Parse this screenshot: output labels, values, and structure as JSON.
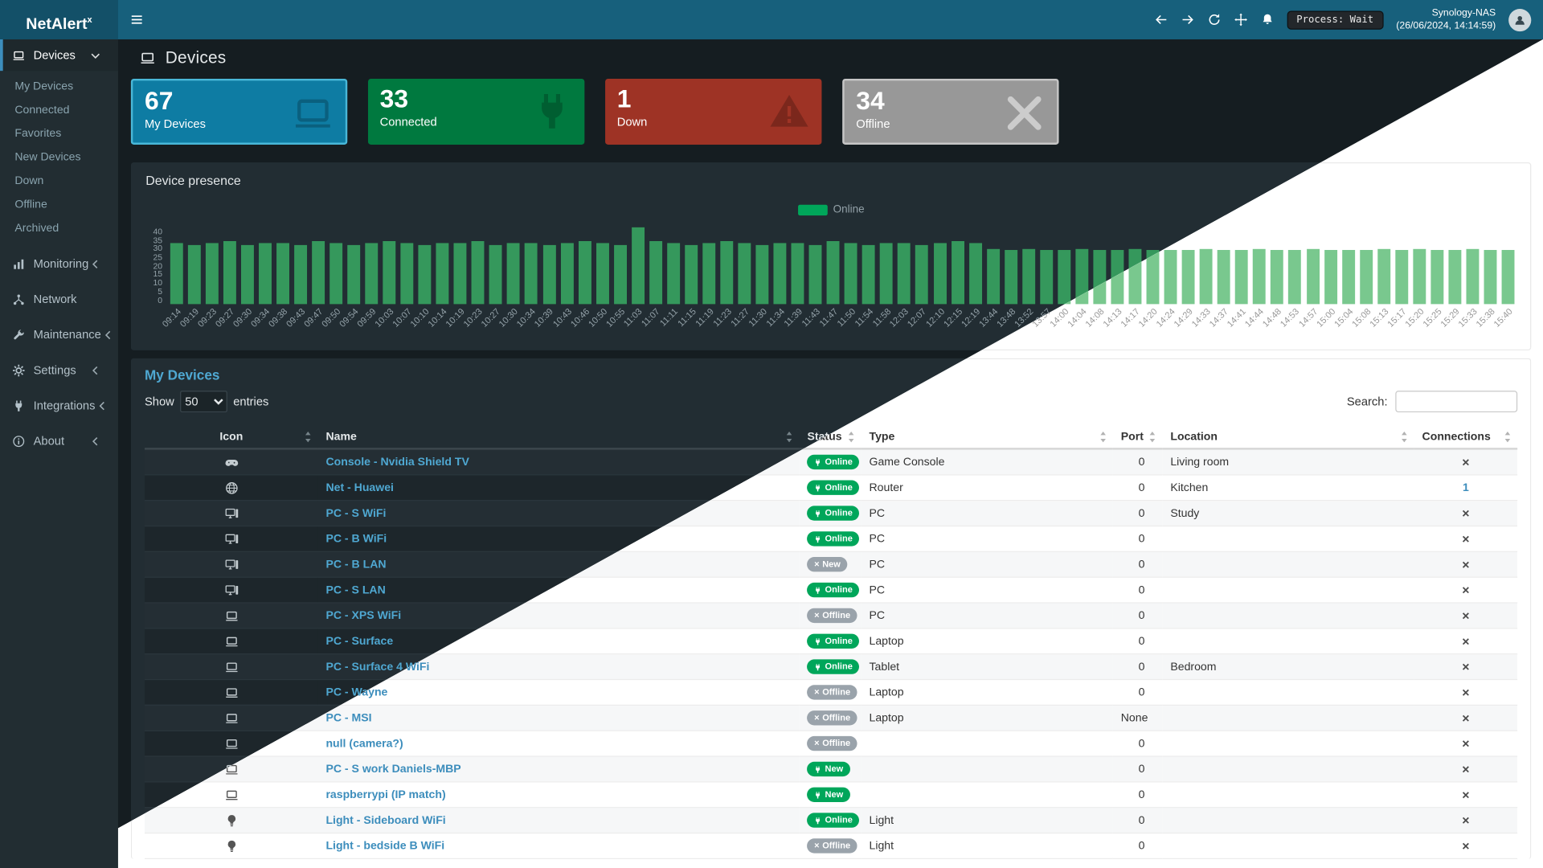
{
  "navbar": {
    "brand": "NetAlert",
    "brand_sup": "x",
    "process_label": "Process: Wait",
    "host": "Synology-NAS",
    "timestamp": "(26/06/2024, 14:14:59)"
  },
  "sidebar": {
    "items": [
      {
        "label": "Devices",
        "icon": "laptop",
        "chevron": "down",
        "active": true,
        "children": [
          "My Devices",
          "Connected",
          "Favorites",
          "New Devices",
          "Down",
          "Offline",
          "Archived"
        ]
      },
      {
        "label": "Monitoring",
        "icon": "chart",
        "chevron": "left"
      },
      {
        "label": "Network",
        "icon": "network",
        "chevron": ""
      },
      {
        "label": "Maintenance",
        "icon": "wrench",
        "chevron": "left"
      },
      {
        "label": "Settings",
        "icon": "gear",
        "chevron": "left"
      },
      {
        "label": "Integrations",
        "icon": "plug",
        "chevron": "left"
      },
      {
        "label": "About",
        "icon": "info",
        "chevron": "left"
      }
    ]
  },
  "page": {
    "title": "Devices"
  },
  "stats": [
    {
      "value": "67",
      "label": "My Devices",
      "color": "#0e7ca3",
      "border": "#49b7d8",
      "icon": "laptop"
    },
    {
      "value": "33",
      "label": "Connected",
      "color": "#00793f",
      "icon": "plug"
    },
    {
      "value": "1",
      "label": "Down",
      "color": "#9e3325",
      "icon": "warning"
    },
    {
      "value": "34",
      "label": "Offline",
      "color": "#989898",
      "border": "#c6c6c6",
      "icon": "x"
    }
  ],
  "presence": {
    "title": "Device presence",
    "legend": "Online",
    "legend_color": "#00a65a"
  },
  "chart_data": {
    "type": "bar",
    "title": "Device presence",
    "legend": [
      "Online"
    ],
    "legend_position": "top",
    "ylim": [
      0,
      40
    ],
    "yticks": [
      0,
      5,
      10,
      15,
      20,
      25,
      30,
      35,
      40
    ],
    "x": [
      "09:14",
      "09:19",
      "09:23",
      "09:27",
      "09:30",
      "09:34",
      "09:38",
      "09:43",
      "09:47",
      "09:50",
      "09:54",
      "09:59",
      "10:03",
      "10:07",
      "10:10",
      "10:14",
      "10:19",
      "10:23",
      "10:27",
      "10:30",
      "10:34",
      "10:39",
      "10:43",
      "10:46",
      "10:50",
      "10:55",
      "11:03",
      "11:07",
      "11:11",
      "11:15",
      "11:19",
      "11:23",
      "11:27",
      "11:30",
      "11:34",
      "11:39",
      "11:43",
      "11:47",
      "11:50",
      "11:54",
      "11:58",
      "12:03",
      "12:07",
      "12:10",
      "12:15",
      "12:19",
      "13:44",
      "13:48",
      "13:52",
      "13:57",
      "14:00",
      "14:04",
      "14:08",
      "14:13",
      "14:17",
      "14:20",
      "14:24",
      "14:29",
      "14:33",
      "14:37",
      "14:41",
      "14:44",
      "14:48",
      "14:53",
      "14:57",
      "15:00",
      "15:04",
      "15:08",
      "15:13",
      "15:17",
      "15:20",
      "15:25",
      "15:29",
      "15:33",
      "15:38",
      "15:40"
    ],
    "series": [
      {
        "name": "Online",
        "values": [
          32,
          31,
          32,
          33,
          31,
          32,
          32,
          31,
          33,
          32,
          31,
          32,
          33,
          32,
          31,
          32,
          32,
          33,
          31,
          32,
          32,
          31,
          32,
          33,
          32,
          31,
          40,
          33,
          32,
          31,
          32,
          33,
          32,
          31,
          32,
          32,
          31,
          33,
          32,
          31,
          32,
          32,
          31,
          32,
          33,
          32,
          29,
          28,
          29,
          28,
          28,
          29,
          28,
          28,
          29,
          28,
          28,
          28,
          29,
          28,
          28,
          29,
          28,
          28,
          29,
          28,
          28,
          28,
          29,
          28,
          29,
          28,
          28,
          29,
          28,
          28
        ]
      }
    ]
  },
  "devices_table": {
    "title": "My Devices",
    "show_label": "Show",
    "page_length": "50",
    "entries_label": "entries",
    "search_label": "Search:",
    "columns": [
      "Icon",
      "Name",
      "Status",
      "Type",
      "Port",
      "Location",
      "Connections"
    ],
    "rows": [
      {
        "icon": "gamepad",
        "name": "Console - Nvidia Shield TV",
        "status": "Online",
        "kind": "online",
        "type": "Game Console",
        "port": "0",
        "location": "Living room",
        "connections": "x"
      },
      {
        "icon": "globe",
        "name": "Net - Huawei",
        "status": "Online",
        "kind": "online",
        "type": "Router",
        "port": "0",
        "location": "Kitchen",
        "connections": "1"
      },
      {
        "icon": "desktop",
        "name": "PC - S WiFi",
        "status": "Online",
        "kind": "online",
        "type": "PC",
        "port": "0",
        "location": "Study",
        "connections": "x"
      },
      {
        "icon": "desktop",
        "name": "PC - B WiFi",
        "status": "Online",
        "kind": "online",
        "type": "PC",
        "port": "0",
        "location": "",
        "connections": "x"
      },
      {
        "icon": "desktop",
        "name": "PC - B LAN",
        "status": "New",
        "kind": "new-muted",
        "type": "PC",
        "port": "0",
        "location": "",
        "connections": "x"
      },
      {
        "icon": "desktop",
        "name": "PC - S LAN",
        "status": "Online",
        "kind": "online",
        "type": "PC",
        "port": "0",
        "location": "",
        "connections": "x"
      },
      {
        "icon": "laptop",
        "name": "PC - XPS WiFi",
        "status": "Offline",
        "kind": "offline",
        "type": "PC",
        "port": "0",
        "location": "",
        "connections": "x"
      },
      {
        "icon": "laptop",
        "name": "PC - Surface",
        "status": "Online",
        "kind": "online",
        "type": "Laptop",
        "port": "0",
        "location": "",
        "connections": "x"
      },
      {
        "icon": "laptop",
        "name": "PC - Surface 4 WiFi",
        "status": "Online",
        "kind": "online",
        "type": "Tablet",
        "port": "0",
        "location": "Bedroom",
        "connections": "x"
      },
      {
        "icon": "laptop",
        "name": "PC - Wayne",
        "status": "Offline",
        "kind": "offline",
        "type": "Laptop",
        "port": "0",
        "location": "",
        "connections": "x"
      },
      {
        "icon": "laptop",
        "name": "PC - MSI",
        "status": "Offline",
        "kind": "offline",
        "type": "Laptop",
        "port": "None",
        "location": "",
        "connections": "x"
      },
      {
        "icon": "laptop",
        "name": "null (camera?)",
        "status": "Offline",
        "kind": "offline",
        "type": "",
        "port": "0",
        "location": "",
        "connections": "x"
      },
      {
        "icon": "laptop",
        "name": "PC - S work Daniels-MBP",
        "status": "New",
        "kind": "new",
        "type": "",
        "port": "0",
        "location": "",
        "connections": "x"
      },
      {
        "icon": "laptop",
        "name": "raspberrypi (IP match)",
        "status": "New",
        "kind": "new",
        "type": "",
        "port": "0",
        "location": "",
        "connections": "x"
      },
      {
        "icon": "bulb",
        "name": "Light - Sideboard WiFi",
        "status": "Online",
        "kind": "online",
        "type": "Light",
        "port": "0",
        "location": "",
        "connections": "x"
      },
      {
        "icon": "bulb",
        "name": "Light - bedside B WiFi",
        "status": "Offline",
        "kind": "offline",
        "type": "Light",
        "port": "0",
        "location": "",
        "connections": "x"
      }
    ]
  }
}
